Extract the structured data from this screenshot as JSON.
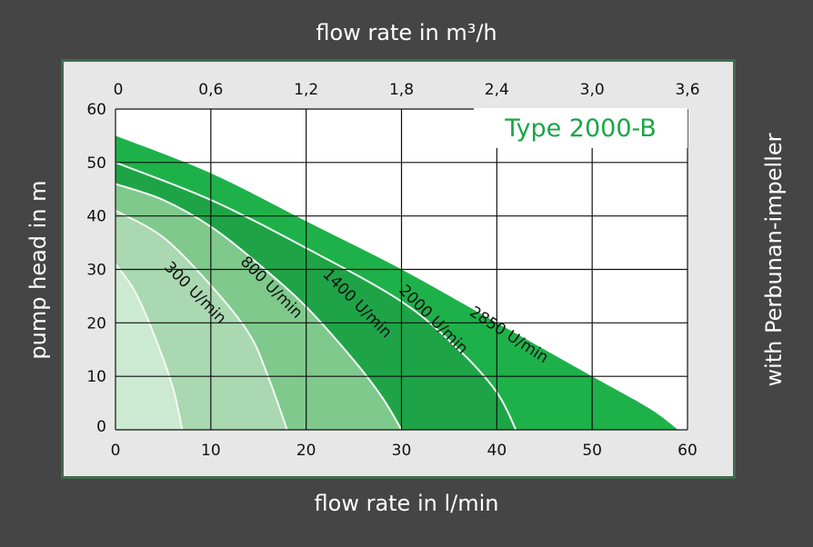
{
  "chart_data": {
    "type": "area",
    "title": "Type 2000-B",
    "xlabel": "flow rate in l/min",
    "x2label": "flow rate in m³/h",
    "ylabel": "pump head in m",
    "side_label": "with Perbunan-impeller",
    "xlim": [
      0,
      60
    ],
    "ylim": [
      0,
      60
    ],
    "x_ticks": [
      "0",
      "10",
      "20",
      "30",
      "40",
      "50",
      "60"
    ],
    "x2_ticks": [
      "0",
      "0,6",
      "1,2",
      "1,8",
      "2,4",
      "3,0",
      "3,6"
    ],
    "y_ticks": [
      "0",
      "10",
      "20",
      "30",
      "40",
      "50",
      "60"
    ],
    "grid": true,
    "series": [
      {
        "name": "2850 U/min",
        "color": "#1eb14a",
        "label_at": [
          41,
          17
        ],
        "x": [
          0,
          10,
          20,
          30,
          40,
          50,
          56,
          59
        ],
        "y": [
          55,
          48,
          39,
          30,
          20,
          10,
          4,
          0
        ]
      },
      {
        "name": "2000 U/min",
        "color": "#1ea447",
        "label_at": [
          33,
          20
        ],
        "x": [
          0,
          10,
          20,
          30,
          36,
          40,
          42
        ],
        "y": [
          50,
          43,
          34,
          24,
          15,
          7,
          0
        ]
      },
      {
        "name": "1400 U/min",
        "color": "#7fc98c",
        "label_at": [
          25,
          23
        ],
        "x": [
          0,
          5,
          10,
          15,
          20,
          25,
          28,
          30
        ],
        "y": [
          46,
          43,
          38,
          31,
          23,
          13,
          6,
          0
        ]
      },
      {
        "name": "800 U/min",
        "color": "#a9d8b1",
        "label_at": [
          16,
          26
        ],
        "x": [
          0,
          5,
          10,
          14,
          16,
          18
        ],
        "y": [
          41,
          36,
          27,
          18,
          10,
          0
        ]
      },
      {
        "name": "300 U/min",
        "color": "#cce9d1",
        "label_at": [
          8,
          25
        ],
        "x": [
          0,
          2,
          4,
          6,
          7
        ],
        "y": [
          31,
          26,
          18,
          8,
          0
        ]
      }
    ]
  }
}
